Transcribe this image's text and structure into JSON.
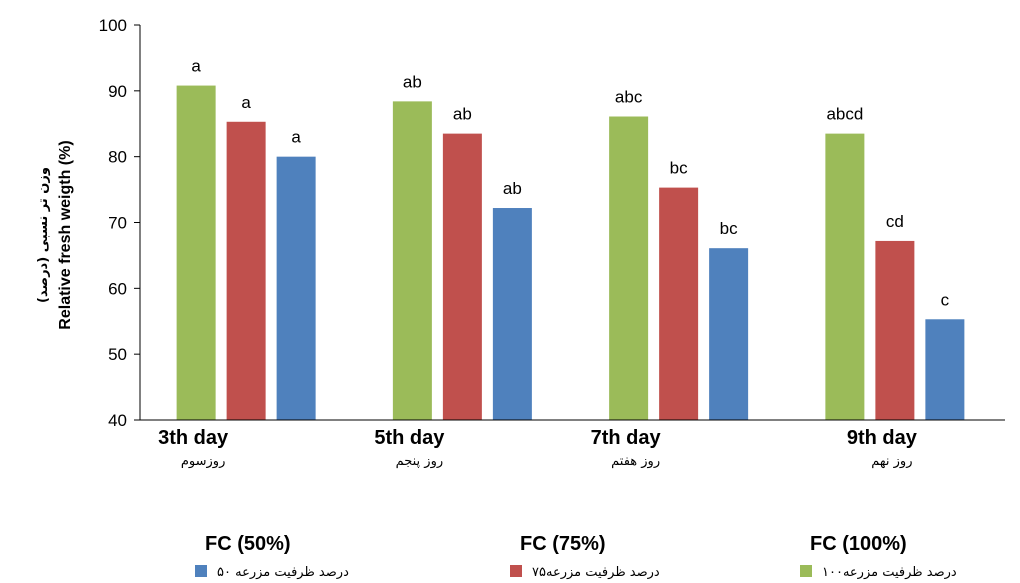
{
  "chart_data": {
    "type": "bar",
    "categories": [
      "3th day",
      "5th day",
      "7th day",
      "9th day"
    ],
    "categories_fa": [
      "روزسوم",
      "روز پنجم",
      "روز هفتم",
      "روز نهم"
    ],
    "ylabel_en": "Relative fresh weigth (%)",
    "ylabel_fa": "وزن تر نسبی (درصد)",
    "ylim": [
      40,
      100
    ],
    "yticks": [
      40,
      50,
      60,
      70,
      80,
      90,
      100
    ],
    "grid": false,
    "series": [
      {
        "name": "FC (100%)",
        "legend_text": "۱۰۰درصد ظرفیت مزرعه",
        "color": "#9bbb59",
        "values": [
          90.8,
          88.4,
          86.1,
          83.5
        ],
        "labels": [
          "a",
          "ab",
          "abc",
          "abcd"
        ]
      },
      {
        "name": "FC (75%)",
        "legend_text": "۷۵درصد ظرفیت مزرعه",
        "color": "#c0504d",
        "values": [
          85.3,
          83.5,
          75.3,
          67.2
        ],
        "labels": [
          "a",
          "ab",
          "bc",
          "cd"
        ]
      },
      {
        "name": "FC (50%)",
        "legend_text": "۵۰ درصد ظرفیت مزرعه",
        "color": "#4f81bd",
        "values": [
          80.0,
          72.2,
          66.1,
          55.3
        ],
        "labels": [
          "a",
          "ab",
          "bc",
          "c"
        ]
      }
    ]
  }
}
